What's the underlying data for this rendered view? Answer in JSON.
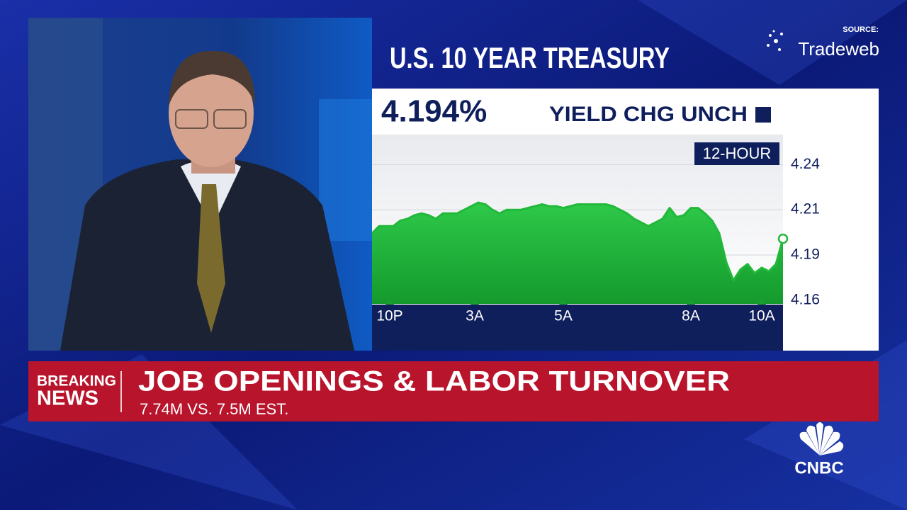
{
  "source_label": "SOURCE:",
  "source_name": "Tradeweb",
  "quote": {
    "yield": "4.194%",
    "change": "YIELD CHG UNCH"
  },
  "lower_third": {
    "tag": [
      "BREAKING",
      "NEWS"
    ],
    "headline": "JOB OPENINGS & LABOR TURNOVER",
    "subhead": "7.74M VS. 7.5M EST."
  },
  "network": "CNBC",
  "chart_data": {
    "type": "area",
    "title": "U.S. 10 YEAR TREASURY",
    "period": "12-HOUR",
    "x": [
      0,
      1,
      2,
      3,
      4,
      5,
      6,
      7,
      8,
      9,
      10,
      11,
      12,
      13,
      14,
      15,
      16,
      17,
      18,
      19,
      20,
      21,
      22,
      23,
      24,
      25,
      26,
      27,
      28,
      29,
      30,
      31,
      32,
      33,
      34,
      35,
      36,
      37,
      38,
      39,
      40,
      41,
      42,
      43,
      44,
      45,
      46,
      47,
      48,
      49,
      50,
      51,
      52,
      53,
      54,
      55,
      56,
      57,
      58
    ],
    "series": [
      {
        "name": "U.S. 10 Year Treasury yield",
        "color": "#22b83a",
        "values": [
          4.197,
          4.201,
          4.201,
          4.201,
          4.204,
          4.205,
          4.207,
          4.208,
          4.207,
          4.205,
          4.208,
          4.208,
          4.208,
          4.21,
          4.212,
          4.214,
          4.213,
          4.21,
          4.208,
          4.21,
          4.21,
          4.21,
          4.211,
          4.212,
          4.213,
          4.212,
          4.212,
          4.211,
          4.212,
          4.213,
          4.213,
          4.213,
          4.213,
          4.213,
          4.212,
          4.21,
          4.208,
          4.205,
          4.203,
          4.201,
          4.203,
          4.205,
          4.211,
          4.206,
          4.207,
          4.211,
          4.211,
          4.208,
          4.204,
          4.197,
          4.181,
          4.171,
          4.177,
          4.18,
          4.175,
          4.178,
          4.176,
          4.18,
          4.194
        ]
      }
    ],
    "xlim": [
      0,
      58
    ],
    "xticks": [
      {
        "value": 2.5,
        "label": "10P"
      },
      {
        "value": 14.5,
        "label": "3A"
      },
      {
        "value": 27,
        "label": "5A"
      },
      {
        "value": 45,
        "label": "8A"
      },
      {
        "value": 55,
        "label": "10A"
      }
    ],
    "ylim": [
      4.158,
      4.25
    ],
    "yticks": [
      {
        "value": 4.235,
        "label": "4.24"
      },
      4.21,
      {
        "value": 4.185,
        "label": "4.19"
      },
      4.16
    ],
    "grid": true
  }
}
